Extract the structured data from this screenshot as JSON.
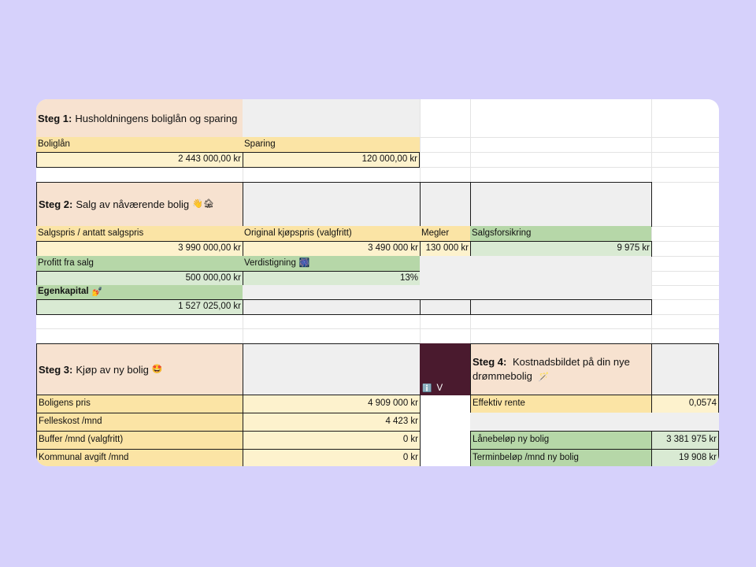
{
  "step1": {
    "label": "Steg 1:",
    "title": "Husholdningens boliglån og sparing",
    "boliglan_label": "Boliglån",
    "boliglan_value": "2 443 000,00 kr",
    "sparing_label": "Sparing",
    "sparing_value": "120 000,00 kr"
  },
  "step2": {
    "label": "Steg 2:",
    "title": "Salg av nåværende bolig",
    "title_emoji": "👋🏚",
    "salgspris_label": "Salgspris / antatt salgspris",
    "salgspris_value": "3 990 000,00 kr",
    "kjopspris_label": "Original kjøpspris (valgfritt)",
    "kjopspris_value": "3 490 000 kr",
    "megler_label": "Megler",
    "megler_value": "130 000 kr",
    "salgsforsikring_label": "Salgsforsikring",
    "salgsforsikring_value": "9 975 kr",
    "profitt_label": "Profitt fra salg",
    "profitt_value": "500 000,00 kr",
    "verdistigning_label": "Verdistigning",
    "verdistigning_emoji": "🎆",
    "verdistigning_value": "13%",
    "egenkapital_label": "Egenkapital",
    "egenkapital_emoji": "💅",
    "egenkapital_value": "1 527 025,00 kr"
  },
  "step3": {
    "label": "Steg 3:",
    "title": "Kjøp av ny bolig",
    "title_emoji": "🤩",
    "boligens_pris_label": "Boligens pris",
    "boligens_pris_value": "4 909 000 kr",
    "felleskost_label": "Felleskost /mnd",
    "felleskost_value": "4 423 kr",
    "buffer_label": "Buffer /mnd (valgfritt)",
    "buffer_value": "0 kr",
    "kommunal_label": "Kommunal avgift /mnd",
    "kommunal_value": "0 kr"
  },
  "dropdown": {
    "icon": "ℹ️",
    "label": "V"
  },
  "step4": {
    "label": "Steg 4:",
    "title": "Kostnadsbildet på din nye drømmebolig",
    "title_emoji": "🪄",
    "effektiv_rente_label": "Effektiv rente",
    "effektiv_rente_value": "0,0574",
    "lanebelop_label": "Lånebeløp ny bolig",
    "lanebelop_value": "3 381 975 kr",
    "terminbelop_label": "Terminbeløp /mnd ny bolig",
    "terminbelop_value": "19 908 kr"
  },
  "colors": {
    "background": "#d6d1fb",
    "peach": "#f7e2d0",
    "yellow": "#fbe4a5",
    "yellow_light": "#fdf2cd",
    "green": "#b6d7a8",
    "green_light": "#d9ead3",
    "wine": "#4a1a2e"
  }
}
